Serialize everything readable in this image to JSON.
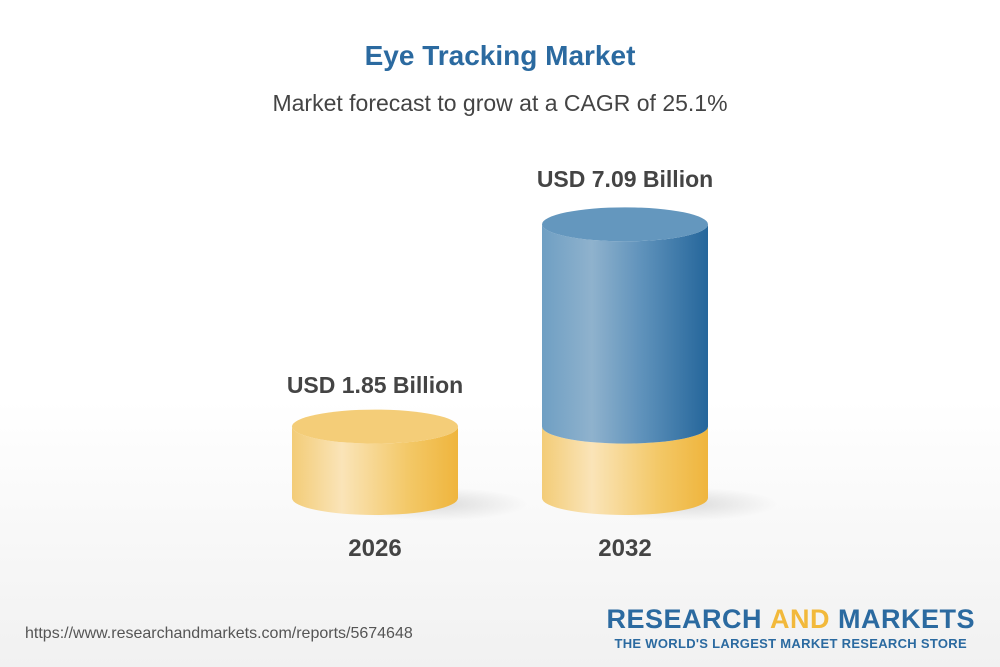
{
  "title": "Eye Tracking Market",
  "subtitle": "Market forecast to grow at a CAGR of 25.1%",
  "chart_data": {
    "type": "bar",
    "style": "3d-cylinder",
    "categories": [
      "2026",
      "2032"
    ],
    "values": [
      1.85,
      7.09
    ],
    "data_labels": [
      "USD 1.85 Billion",
      "USD 7.09 Billion"
    ],
    "unit": "USD Billion",
    "colors": {
      "base": "#f2c15a",
      "growth": "#2b6aa0"
    }
  },
  "footer": {
    "url": "https://www.researchandmarkets.com/reports/5674648",
    "logo_part1": "RESEARCH ",
    "logo_part2": "AND",
    "logo_part3": " MARKETS",
    "tagline": "THE WORLD'S LARGEST MARKET RESEARCH STORE"
  }
}
